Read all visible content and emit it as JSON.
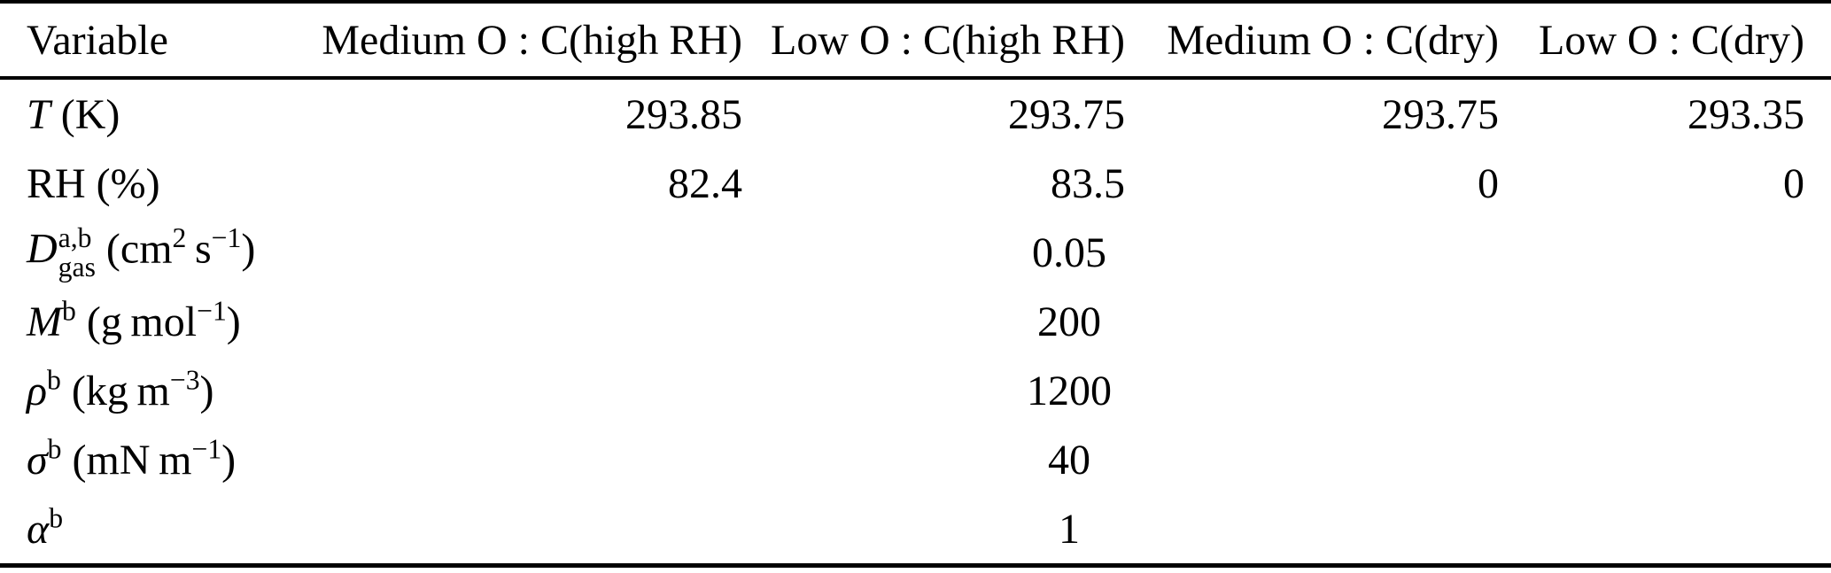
{
  "page": {
    "background": "#ffffff",
    "text_color": "#000000",
    "rule_color": "#000000"
  },
  "table": {
    "columns": [
      {
        "label": "Variable"
      },
      {
        "label": "Medium O : C(high RH)"
      },
      {
        "label": "Low O : C(high RH)"
      },
      {
        "label": "Medium O : C(dry)"
      },
      {
        "label": "Low O : C(dry)"
      }
    ],
    "rows": [
      {
        "name": "temperature",
        "label": [
          {
            "i": "T"
          },
          {
            "t": " (K)"
          }
        ],
        "values": [
          "293.85",
          "293.75",
          "293.75",
          "293.35"
        ]
      },
      {
        "name": "relative-humidity",
        "label": [
          {
            "t": "RH (%)"
          }
        ],
        "values": [
          "82.4",
          "83.5",
          "0",
          "0"
        ]
      },
      {
        "name": "gas-phase-diffusivity",
        "label": [
          {
            "i": "D"
          },
          {
            "supsub": {
              "sup": "a,b",
              "sub": "gas"
            }
          },
          {
            "t": " (cm"
          },
          {
            "sup": "2"
          },
          {
            "t": " s"
          },
          {
            "sup": "−1"
          },
          {
            "t": ")"
          }
        ],
        "span_value": "0.05"
      },
      {
        "name": "molar-mass",
        "label": [
          {
            "i": "M"
          },
          {
            "sup": "b"
          },
          {
            "t": " (g mol"
          },
          {
            "sup": "−1"
          },
          {
            "t": ")"
          }
        ],
        "span_value": "200"
      },
      {
        "name": "density",
        "label": [
          {
            "i": "ρ"
          },
          {
            "sup": "b"
          },
          {
            "t": " (kg m"
          },
          {
            "sup": "−3"
          },
          {
            "t": ")"
          }
        ],
        "span_value": "1200"
      },
      {
        "name": "surface-tension",
        "label": [
          {
            "i": "σ"
          },
          {
            "sup": "b"
          },
          {
            "t": " (mN m"
          },
          {
            "sup": "−1"
          },
          {
            "t": ")"
          }
        ],
        "span_value": "40"
      },
      {
        "name": "accommodation-coefficient",
        "label": [
          {
            "i": "α"
          },
          {
            "sup": "b"
          }
        ],
        "span_value": "1"
      }
    ]
  }
}
